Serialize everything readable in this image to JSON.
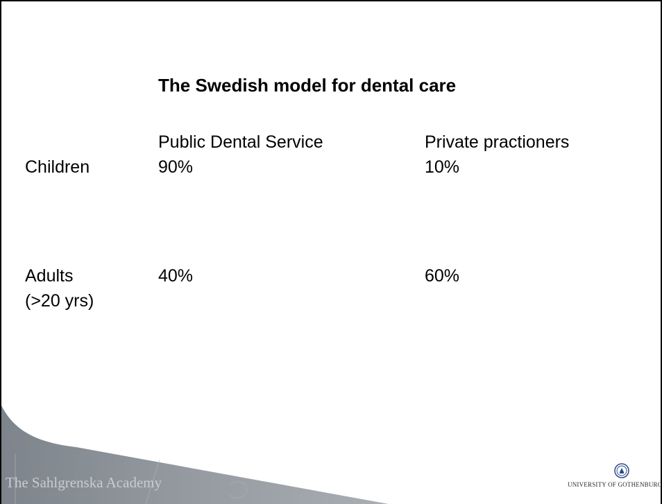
{
  "slide": {
    "title": "The Swedish model for dental care",
    "columns": {
      "public": "Public Dental Service",
      "private": "Private practioners"
    },
    "rows": [
      {
        "label": "Children",
        "public": "90%",
        "private": "10%"
      },
      {
        "label_line1": "Adults",
        "label_line2": "(>20 yrs)",
        "public": "40%",
        "private": "60%"
      }
    ]
  },
  "footer": {
    "academy": "The Sahlgrenska Academy",
    "university": "UNIVERSITY OF GOTHENBURG",
    "logo_icon": "university-seal-icon"
  },
  "colors": {
    "footer_band": "#8a9097",
    "footer_text": "#c9cdd2",
    "frame": "#000000"
  }
}
